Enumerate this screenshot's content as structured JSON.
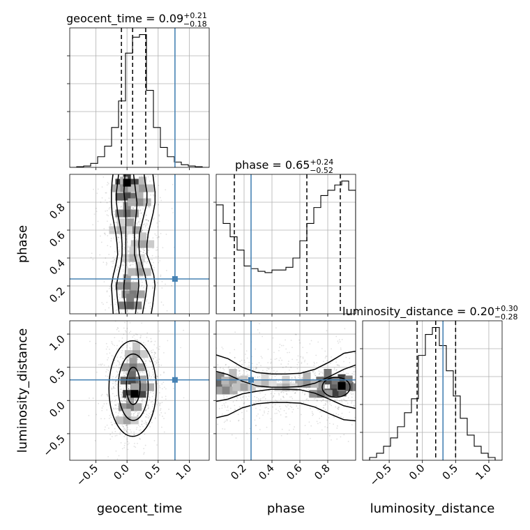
{
  "chart_data": {
    "type": "corner",
    "parameters": [
      "geocent_time",
      "phase",
      "luminosity_distance"
    ],
    "axis_labels": [
      "geocent_time",
      "phase",
      "luminosity_distance"
    ],
    "ranges": [
      [
        -0.92,
        1.32
      ],
      [
        0.0,
        1.0
      ],
      [
        -0.9,
        1.2
      ]
    ],
    "truths": [
      0.77,
      0.25,
      0.31
    ],
    "truth_color": "#4682b4",
    "grid": true,
    "titles": [
      {
        "main": "geocent_time = 0.09",
        "sup": "+0.21",
        "sub": "−0.18"
      },
      {
        "main": "phase = 0.65",
        "sup": "+0.24",
        "sub": "−0.52"
      },
      {
        "main": "luminosity_distance = 0.20",
        "sup": "+0.30",
        "sub": "−0.28"
      }
    ],
    "ticks": {
      "geocent_time": {
        "values": [
          -0.5,
          0.0,
          0.5,
          1.0
        ],
        "labels": [
          "−0.5",
          "0.0",
          "0.5",
          "1.0"
        ]
      },
      "phase": {
        "values": [
          0.2,
          0.4,
          0.6,
          0.8
        ],
        "labels": [
          "0.2",
          "0.4",
          "0.6",
          "0.8"
        ]
      },
      "luminosity_distance": {
        "values": [
          -0.5,
          0.0,
          0.5,
          1.0
        ],
        "labels": [
          "−0.5",
          "0.0",
          "0.5",
          "1.0"
        ]
      }
    },
    "histograms": [
      {
        "parameter": "geocent_time",
        "quantiles": [
          -0.09,
          0.09,
          0.3
        ],
        "edges": [
          -0.92,
          -0.808,
          -0.696,
          -0.584,
          -0.472,
          -0.36,
          -0.248,
          -0.136,
          -0.024,
          0.088,
          0.2,
          0.312,
          0.424,
          0.536,
          0.648,
          0.76,
          0.872,
          0.984,
          1.096,
          1.208,
          1.32
        ],
        "counts": [
          0.0,
          0.005,
          0.01,
          0.03,
          0.08,
          0.16,
          0.3,
          0.5,
          0.86,
          0.98,
          1.0,
          0.58,
          0.3,
          0.15,
          0.08,
          0.04,
          0.02,
          0.01,
          0.005,
          0.0
        ]
      },
      {
        "parameter": "phase",
        "quantiles": [
          0.13,
          0.65,
          0.89
        ],
        "edges": [
          0.0,
          0.05,
          0.1,
          0.15,
          0.2,
          0.25,
          0.3,
          0.35,
          0.4,
          0.45,
          0.5,
          0.55,
          0.6,
          0.65,
          0.7,
          0.75,
          0.8,
          0.85,
          0.9,
          0.95,
          1.0
        ],
        "counts": [
          0.82,
          0.68,
          0.58,
          0.48,
          0.36,
          0.34,
          0.32,
          0.31,
          0.33,
          0.33,
          0.35,
          0.42,
          0.55,
          0.68,
          0.8,
          0.89,
          0.93,
          0.97,
          1.0,
          0.93
        ]
      },
      {
        "parameter": "luminosity_distance",
        "quantiles": [
          -0.08,
          0.2,
          0.5
        ],
        "edges": [
          -0.9,
          -0.795,
          -0.69,
          -0.585,
          -0.48,
          -0.375,
          -0.27,
          -0.165,
          -0.06,
          0.045,
          0.15,
          0.255,
          0.36,
          0.465,
          0.57,
          0.675,
          0.78,
          0.885,
          0.99,
          1.095,
          1.2
        ],
        "counts": [
          0.0,
          0.02,
          0.05,
          0.1,
          0.16,
          0.24,
          0.34,
          0.44,
          0.75,
          0.9,
          0.95,
          0.82,
          0.64,
          0.46,
          0.3,
          0.18,
          0.1,
          0.05,
          0.02,
          0.0
        ]
      }
    ],
    "joint_2d": [
      {
        "x": "geocent_time",
        "y": "phase",
        "x_std": 0.2,
        "y_std": 0.29,
        "cells": [
          [
            0.0,
            0.94,
            1.0
          ],
          [
            0.0,
            0.84,
            0.8
          ],
          [
            0.0,
            0.72,
            0.65
          ],
          [
            0.05,
            0.6,
            0.55
          ],
          [
            0.1,
            0.14,
            0.55
          ],
          [
            0.05,
            0.06,
            0.7
          ],
          [
            0.0,
            0.2,
            0.55
          ],
          [
            0.2,
            0.8,
            0.45
          ],
          [
            0.2,
            0.3,
            0.4
          ],
          [
            -0.05,
            0.9,
            0.45
          ],
          [
            0.25,
            0.9,
            0.4
          ],
          [
            -0.1,
            0.6,
            0.3
          ],
          [
            0.25,
            0.5,
            0.35
          ],
          [
            0.1,
            0.4,
            0.3
          ]
        ],
        "contours": [
          {
            "level": 1,
            "x_left": [
              -0.02,
              -0.03,
              -0.05,
              -0.05,
              -0.03,
              -0.02,
              -0.02,
              -0.02,
              -0.02,
              -0.02,
              -0.02,
              -0.03,
              -0.05,
              -0.04,
              -0.03
            ],
            "x_right": [
              0.13,
              0.15,
              0.17,
              0.19,
              0.18,
              0.16,
              0.12,
              0.12,
              0.12,
              0.13,
              0.15,
              0.16,
              0.14,
              0.12,
              0.1
            ]
          },
          {
            "level": 2,
            "x_left": [
              -0.12,
              -0.14,
              -0.16,
              -0.17,
              -0.14,
              -0.1,
              -0.08,
              -0.08,
              -0.09,
              -0.12,
              -0.15,
              -0.17,
              -0.17,
              -0.15,
              -0.13
            ],
            "x_right": [
              0.24,
              0.27,
              0.3,
              0.32,
              0.29,
              0.24,
              0.2,
              0.19,
              0.2,
              0.24,
              0.28,
              0.32,
              0.32,
              0.29,
              0.27
            ]
          },
          {
            "level": 3,
            "x_left": [
              -0.22,
              -0.23,
              -0.24,
              -0.25,
              -0.22,
              -0.18,
              -0.15,
              -0.16,
              -0.18,
              -0.21,
              -0.24,
              -0.25,
              -0.25,
              -0.24,
              -0.22
            ],
            "x_right": [
              0.38,
              0.41,
              0.43,
              0.45,
              0.43,
              0.38,
              0.32,
              0.32,
              0.34,
              0.38,
              0.42,
              0.45,
              0.45,
              0.43,
              0.41
            ]
          }
        ]
      },
      {
        "x": "geocent_time",
        "y": "luminosity_distance",
        "x_std": 0.2,
        "y_std": 0.28,
        "cells": [
          [
            0.12,
            0.1,
            1.0
          ],
          [
            0.08,
            0.3,
            0.8
          ],
          [
            0.1,
            0.5,
            0.55
          ],
          [
            0.05,
            -0.1,
            0.55
          ],
          [
            0.15,
            0.7,
            0.35
          ],
          [
            0.0,
            -0.3,
            0.35
          ],
          [
            0.25,
            0.2,
            0.5
          ]
        ],
        "contours": [
          {
            "level": 1,
            "cx": 0.1,
            "cy": 0.22,
            "rx": 0.11,
            "ry": 0.28
          },
          {
            "level": 2,
            "cx": 0.1,
            "cy": 0.2,
            "rx": 0.24,
            "ry": 0.5
          },
          {
            "level": 3,
            "cx": 0.09,
            "cy": 0.18,
            "rx": 0.38,
            "ry": 0.72
          }
        ]
      },
      {
        "x": "phase",
        "y": "luminosity_distance",
        "x_std": 0.33,
        "y_std": 0.3,
        "cells": [
          [
            0.9,
            0.22,
            1.0
          ],
          [
            0.85,
            0.12,
            0.85
          ],
          [
            0.8,
            0.3,
            0.75
          ],
          [
            0.95,
            0.2,
            0.7
          ],
          [
            0.75,
            0.1,
            0.6
          ],
          [
            0.03,
            0.25,
            0.65
          ],
          [
            0.07,
            0.15,
            0.5
          ],
          [
            0.65,
            0.25,
            0.45
          ],
          [
            0.12,
            0.3,
            0.4
          ],
          [
            0.2,
            0.2,
            0.35
          ],
          [
            0.5,
            0.2,
            0.3
          ],
          [
            0.35,
            0.25,
            0.25
          ]
        ],
        "contours": [
          {
            "level": 1,
            "kind": "blob",
            "cx": 0.86,
            "cy": 0.2,
            "rx": 0.1,
            "ry": 0.15
          },
          {
            "level": 2,
            "kind": "band",
            "ctop": [
              0.45,
              0.39,
              0.29,
              0.22,
              0.2,
              0.2,
              0.21,
              0.26,
              0.36,
              0.47,
              0.55
            ],
            "cbot": [
              -0.02,
              0.02,
              0.1,
              0.14,
              0.17,
              0.17,
              0.16,
              0.11,
              0.02,
              -0.08,
              -0.13
            ]
          },
          {
            "level": 3,
            "kind": "band",
            "ctop": [
              0.7,
              0.63,
              0.5,
              0.42,
              0.4,
              0.4,
              0.41,
              0.47,
              0.58,
              0.71,
              0.75
            ],
            "cbot": [
              -0.27,
              -0.22,
              -0.11,
              -0.05,
              -0.03,
              -0.03,
              -0.04,
              -0.1,
              -0.2,
              -0.29,
              -0.31
            ]
          }
        ]
      }
    ]
  }
}
